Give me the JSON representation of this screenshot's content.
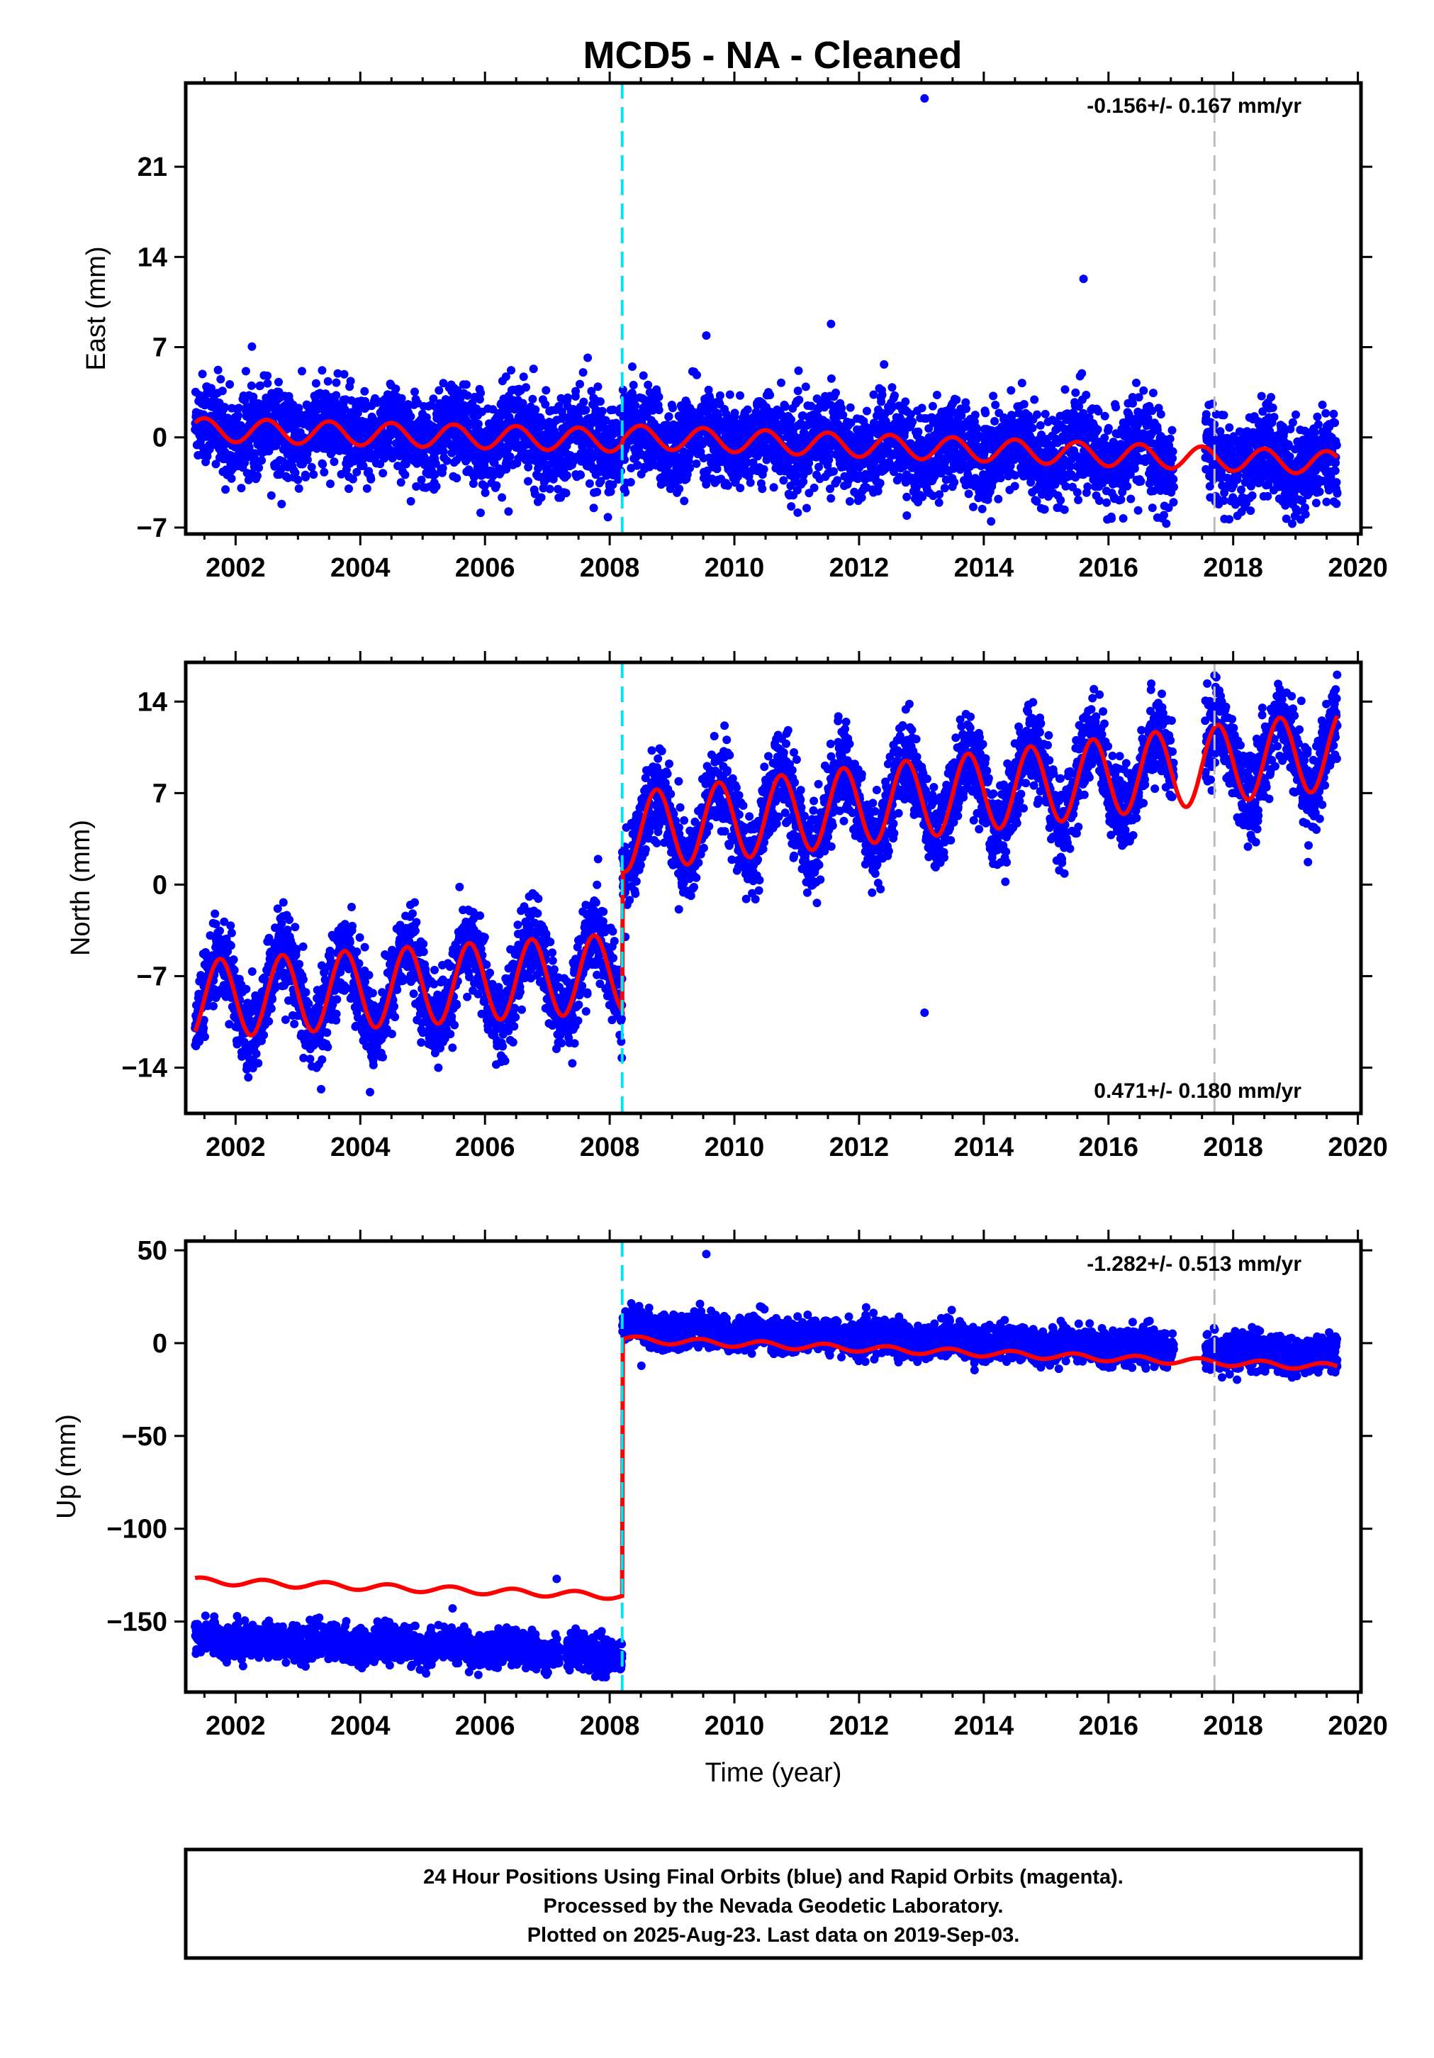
{
  "title": "MCD5  - NA - Cleaned",
  "footer": {
    "line1": "24 Hour Positions Using Final Orbits (blue) and Rapid Orbits (magenta).",
    "line2": "Processed by the Nevada Geodetic Laboratory.",
    "line3": "Plotted on 2025-Aug-23. Last data on 2019-Sep-03."
  },
  "colors": {
    "points": "#0000ff",
    "model": "#ff0000",
    "event_cyan": "#00e5ee",
    "event_gray": "#bbbbbb"
  },
  "chart_data": [
    {
      "type": "scatter",
      "name": "east",
      "ylabel": "East (mm)",
      "xlabel": "",
      "xlim": [
        2001.2,
        2020.05
      ],
      "ylim": [
        -7.5,
        27.5
      ],
      "yticks": [
        -7,
        0,
        7,
        14,
        21
      ],
      "xticks": [
        2002,
        2004,
        2006,
        2008,
        2010,
        2012,
        2014,
        2016,
        2018,
        2020
      ],
      "rate_label": "-0.156+/- 0.167 mm/yr",
      "rate_pos": "top-right",
      "event_lines": [
        {
          "x": 2008.2,
          "color": "cyan"
        },
        {
          "x": 2017.7,
          "color": "gray"
        }
      ],
      "data_span": [
        2001.35,
        2019.67
      ],
      "gaps": [
        [
          2017.05,
          2017.55
        ]
      ],
      "scatter_sigma": 1.7,
      "outliers": [
        {
          "x": 2013.05,
          "y": 26.3
        },
        {
          "x": 2015.6,
          "y": 12.3
        },
        {
          "x": 2011.55,
          "y": 8.8
        },
        {
          "x": 2009.55,
          "y": 7.9
        }
      ],
      "model": {
        "pre": {
          "offset": 0.6,
          "rate": -0.12,
          "amp": 0.9,
          "phase": 0.25
        },
        "post": {
          "offset": 1.3,
          "rate": -0.18,
          "amp": 0.9,
          "phase": 0.25
        }
      }
    },
    {
      "type": "scatter",
      "name": "north",
      "ylabel": "North (mm)",
      "xlabel": "",
      "xlim": [
        2001.2,
        2020.05
      ],
      "ylim": [
        -17.5,
        17
      ],
      "yticks": [
        -14,
        -7,
        0,
        7,
        14
      ],
      "xticks": [
        2002,
        2004,
        2006,
        2008,
        2010,
        2012,
        2014,
        2016,
        2018,
        2020
      ],
      "rate_label": "0.471+/- 0.180 mm/yr",
      "rate_pos": "bottom-right",
      "event_lines": [
        {
          "x": 2008.2,
          "color": "cyan"
        },
        {
          "x": 2017.7,
          "color": "gray"
        }
      ],
      "data_span": [
        2001.35,
        2019.67
      ],
      "gaps": [
        [
          2017.05,
          2017.55
        ]
      ],
      "scatter_sigma": 1.6,
      "outliers": [
        {
          "x": 2013.05,
          "y": -9.8
        },
        {
          "x": 2017.7,
          "y": 16.0
        }
      ],
      "model": {
        "pre": {
          "offset": -8.8,
          "rate": 0.3,
          "amp": 3.0,
          "phase": 0.5
        },
        "post": {
          "offset": 0.2,
          "rate": 0.55,
          "amp": 3.0,
          "phase": 0.5
        }
      }
    },
    {
      "type": "scatter",
      "name": "up",
      "ylabel": "Up (mm)",
      "xlabel": "Time (year)",
      "xlim": [
        2001.2,
        2020.05
      ],
      "ylim": [
        -188,
        55
      ],
      "yticks": [
        -150,
        -100,
        -50,
        0,
        50
      ],
      "xticks": [
        2002,
        2004,
        2006,
        2008,
        2010,
        2012,
        2014,
        2016,
        2018,
        2020
      ],
      "rate_label": "-1.282+/- 0.513 mm/yr",
      "rate_pos": "top-right",
      "event_lines": [
        {
          "x": 2008.2,
          "color": "cyan"
        },
        {
          "x": 2017.7,
          "color": "gray"
        }
      ],
      "data_span": [
        2001.35,
        2019.67
      ],
      "gaps": [
        [
          2007.2,
          2007.3
        ],
        [
          2017.05,
          2017.55
        ]
      ],
      "scatter_sigma": 4.5,
      "outliers": [
        {
          "x": 2009.55,
          "y": 48
        },
        {
          "x": 2007.15,
          "y": -127
        }
      ],
      "point_offsets": {
        "pre": -31,
        "post": 6
      },
      "model": {
        "pre": {
          "offset": -128,
          "rate": -1.2,
          "amp": 1.8,
          "phase": 0.2
        },
        "post": {
          "offset": 11,
          "rate": -1.3,
          "amp": 1.8,
          "phase": 0.2
        }
      }
    }
  ]
}
